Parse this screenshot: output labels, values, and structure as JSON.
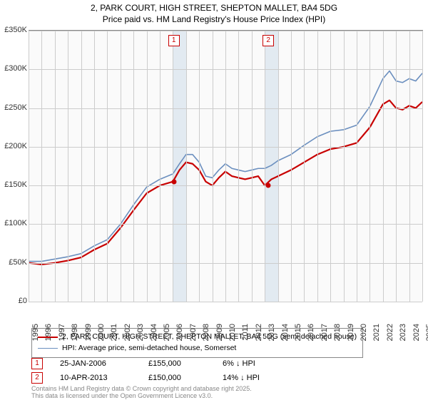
{
  "title_line1": "2, PARK COURT, HIGH STREET, SHEPTON MALLET, BA4 5DG",
  "title_line2": "Price paid vs. HM Land Registry's House Price Index (HPI)",
  "chart": {
    "type": "line",
    "background_color": "#fafafa",
    "grid_color": "#cccccc",
    "border_color": "#888888",
    "x_start_year": 1995,
    "x_end_year": 2025,
    "ylim": [
      0,
      350000
    ],
    "ytick_step": 50000,
    "yticks": [
      "£0",
      "£50K",
      "£100K",
      "£150K",
      "£200K",
      "£250K",
      "£300K",
      "£350K"
    ],
    "xticks": [
      "1995",
      "1996",
      "1997",
      "1998",
      "1999",
      "2000",
      "2001",
      "2002",
      "2003",
      "2004",
      "2005",
      "2006",
      "2007",
      "2008",
      "2009",
      "2010",
      "2011",
      "2012",
      "2013",
      "2014",
      "2015",
      "2016",
      "2017",
      "2018",
      "2019",
      "2020",
      "2021",
      "2022",
      "2023",
      "2024",
      "2025"
    ],
    "highlight_bands": [
      {
        "year": 2006,
        "color": "#dde6ef"
      },
      {
        "year": 2013,
        "color": "#dde6ef"
      }
    ],
    "band_markers": [
      {
        "label": "1",
        "year": 2006.07,
        "color": "#c80000"
      },
      {
        "label": "2",
        "year": 2013.27,
        "color": "#c80000"
      }
    ],
    "series": [
      {
        "name": "property",
        "color": "#c80000",
        "width": 2.2,
        "values": [
          [
            1995,
            50000
          ],
          [
            1996,
            48000
          ],
          [
            1997,
            50000
          ],
          [
            1998,
            53000
          ],
          [
            1999,
            57000
          ],
          [
            2000,
            67000
          ],
          [
            2001,
            75000
          ],
          [
            2002,
            95000
          ],
          [
            2003,
            118000
          ],
          [
            2004,
            140000
          ],
          [
            2005,
            150000
          ],
          [
            2006,
            155000
          ],
          [
            2006.5,
            170000
          ],
          [
            2007,
            180000
          ],
          [
            2007.5,
            178000
          ],
          [
            2008,
            170000
          ],
          [
            2008.5,
            155000
          ],
          [
            2009,
            150000
          ],
          [
            2009.5,
            160000
          ],
          [
            2010,
            168000
          ],
          [
            2010.5,
            162000
          ],
          [
            2011,
            160000
          ],
          [
            2011.5,
            158000
          ],
          [
            2012,
            160000
          ],
          [
            2012.5,
            162000
          ],
          [
            2013,
            150000
          ],
          [
            2013.5,
            158000
          ],
          [
            2014,
            162000
          ],
          [
            2015,
            170000
          ],
          [
            2016,
            180000
          ],
          [
            2017,
            190000
          ],
          [
            2018,
            197000
          ],
          [
            2019,
            200000
          ],
          [
            2020,
            205000
          ],
          [
            2021,
            225000
          ],
          [
            2022,
            255000
          ],
          [
            2022.5,
            260000
          ],
          [
            2023,
            250000
          ],
          [
            2023.5,
            248000
          ],
          [
            2024,
            253000
          ],
          [
            2024.5,
            250000
          ],
          [
            2025,
            258000
          ]
        ]
      },
      {
        "name": "hpi",
        "color": "#6b8fbf",
        "width": 1.6,
        "values": [
          [
            1995,
            52000
          ],
          [
            1996,
            52000
          ],
          [
            1997,
            55000
          ],
          [
            1998,
            58000
          ],
          [
            1999,
            62000
          ],
          [
            2000,
            72000
          ],
          [
            2001,
            80000
          ],
          [
            2002,
            100000
          ],
          [
            2003,
            125000
          ],
          [
            2004,
            148000
          ],
          [
            2005,
            158000
          ],
          [
            2006,
            165000
          ],
          [
            2006.5,
            178000
          ],
          [
            2007,
            190000
          ],
          [
            2007.5,
            190000
          ],
          [
            2008,
            180000
          ],
          [
            2008.5,
            162000
          ],
          [
            2009,
            160000
          ],
          [
            2009.5,
            170000
          ],
          [
            2010,
            178000
          ],
          [
            2010.5,
            172000
          ],
          [
            2011,
            170000
          ],
          [
            2011.5,
            168000
          ],
          [
            2012,
            170000
          ],
          [
            2012.5,
            172000
          ],
          [
            2013,
            172000
          ],
          [
            2013.5,
            176000
          ],
          [
            2014,
            182000
          ],
          [
            2015,
            190000
          ],
          [
            2016,
            202000
          ],
          [
            2017,
            213000
          ],
          [
            2018,
            220000
          ],
          [
            2019,
            222000
          ],
          [
            2020,
            228000
          ],
          [
            2021,
            252000
          ],
          [
            2022,
            288000
          ],
          [
            2022.5,
            298000
          ],
          [
            2023,
            285000
          ],
          [
            2023.5,
            283000
          ],
          [
            2024,
            288000
          ],
          [
            2024.5,
            285000
          ],
          [
            2025,
            295000
          ]
        ]
      }
    ],
    "sale_dots": [
      {
        "year": 2006.07,
        "price": 155000,
        "color": "#c80000"
      },
      {
        "year": 2013.27,
        "price": 150000,
        "color": "#c80000"
      }
    ]
  },
  "legend": {
    "items": [
      {
        "color": "#c80000",
        "width": 2.2,
        "label": "2, PARK COURT, HIGH STREET, SHEPTON MALLET, BA4 5DG (semi-detached house)"
      },
      {
        "color": "#6b8fbf",
        "width": 1.6,
        "label": "HPI: Average price, semi-detached house, Somerset"
      }
    ]
  },
  "sales": [
    {
      "marker": "1",
      "marker_color": "#c80000",
      "date": "25-JAN-2006",
      "price": "£155,000",
      "diff": "6% ↓ HPI"
    },
    {
      "marker": "2",
      "marker_color": "#c80000",
      "date": "10-APR-2013",
      "price": "£150,000",
      "diff": "14% ↓ HPI"
    }
  ],
  "footnote_line1": "Contains HM Land Registry data © Crown copyright and database right 2025.",
  "footnote_line2": "This data is licensed under the Open Government Licence v3.0."
}
